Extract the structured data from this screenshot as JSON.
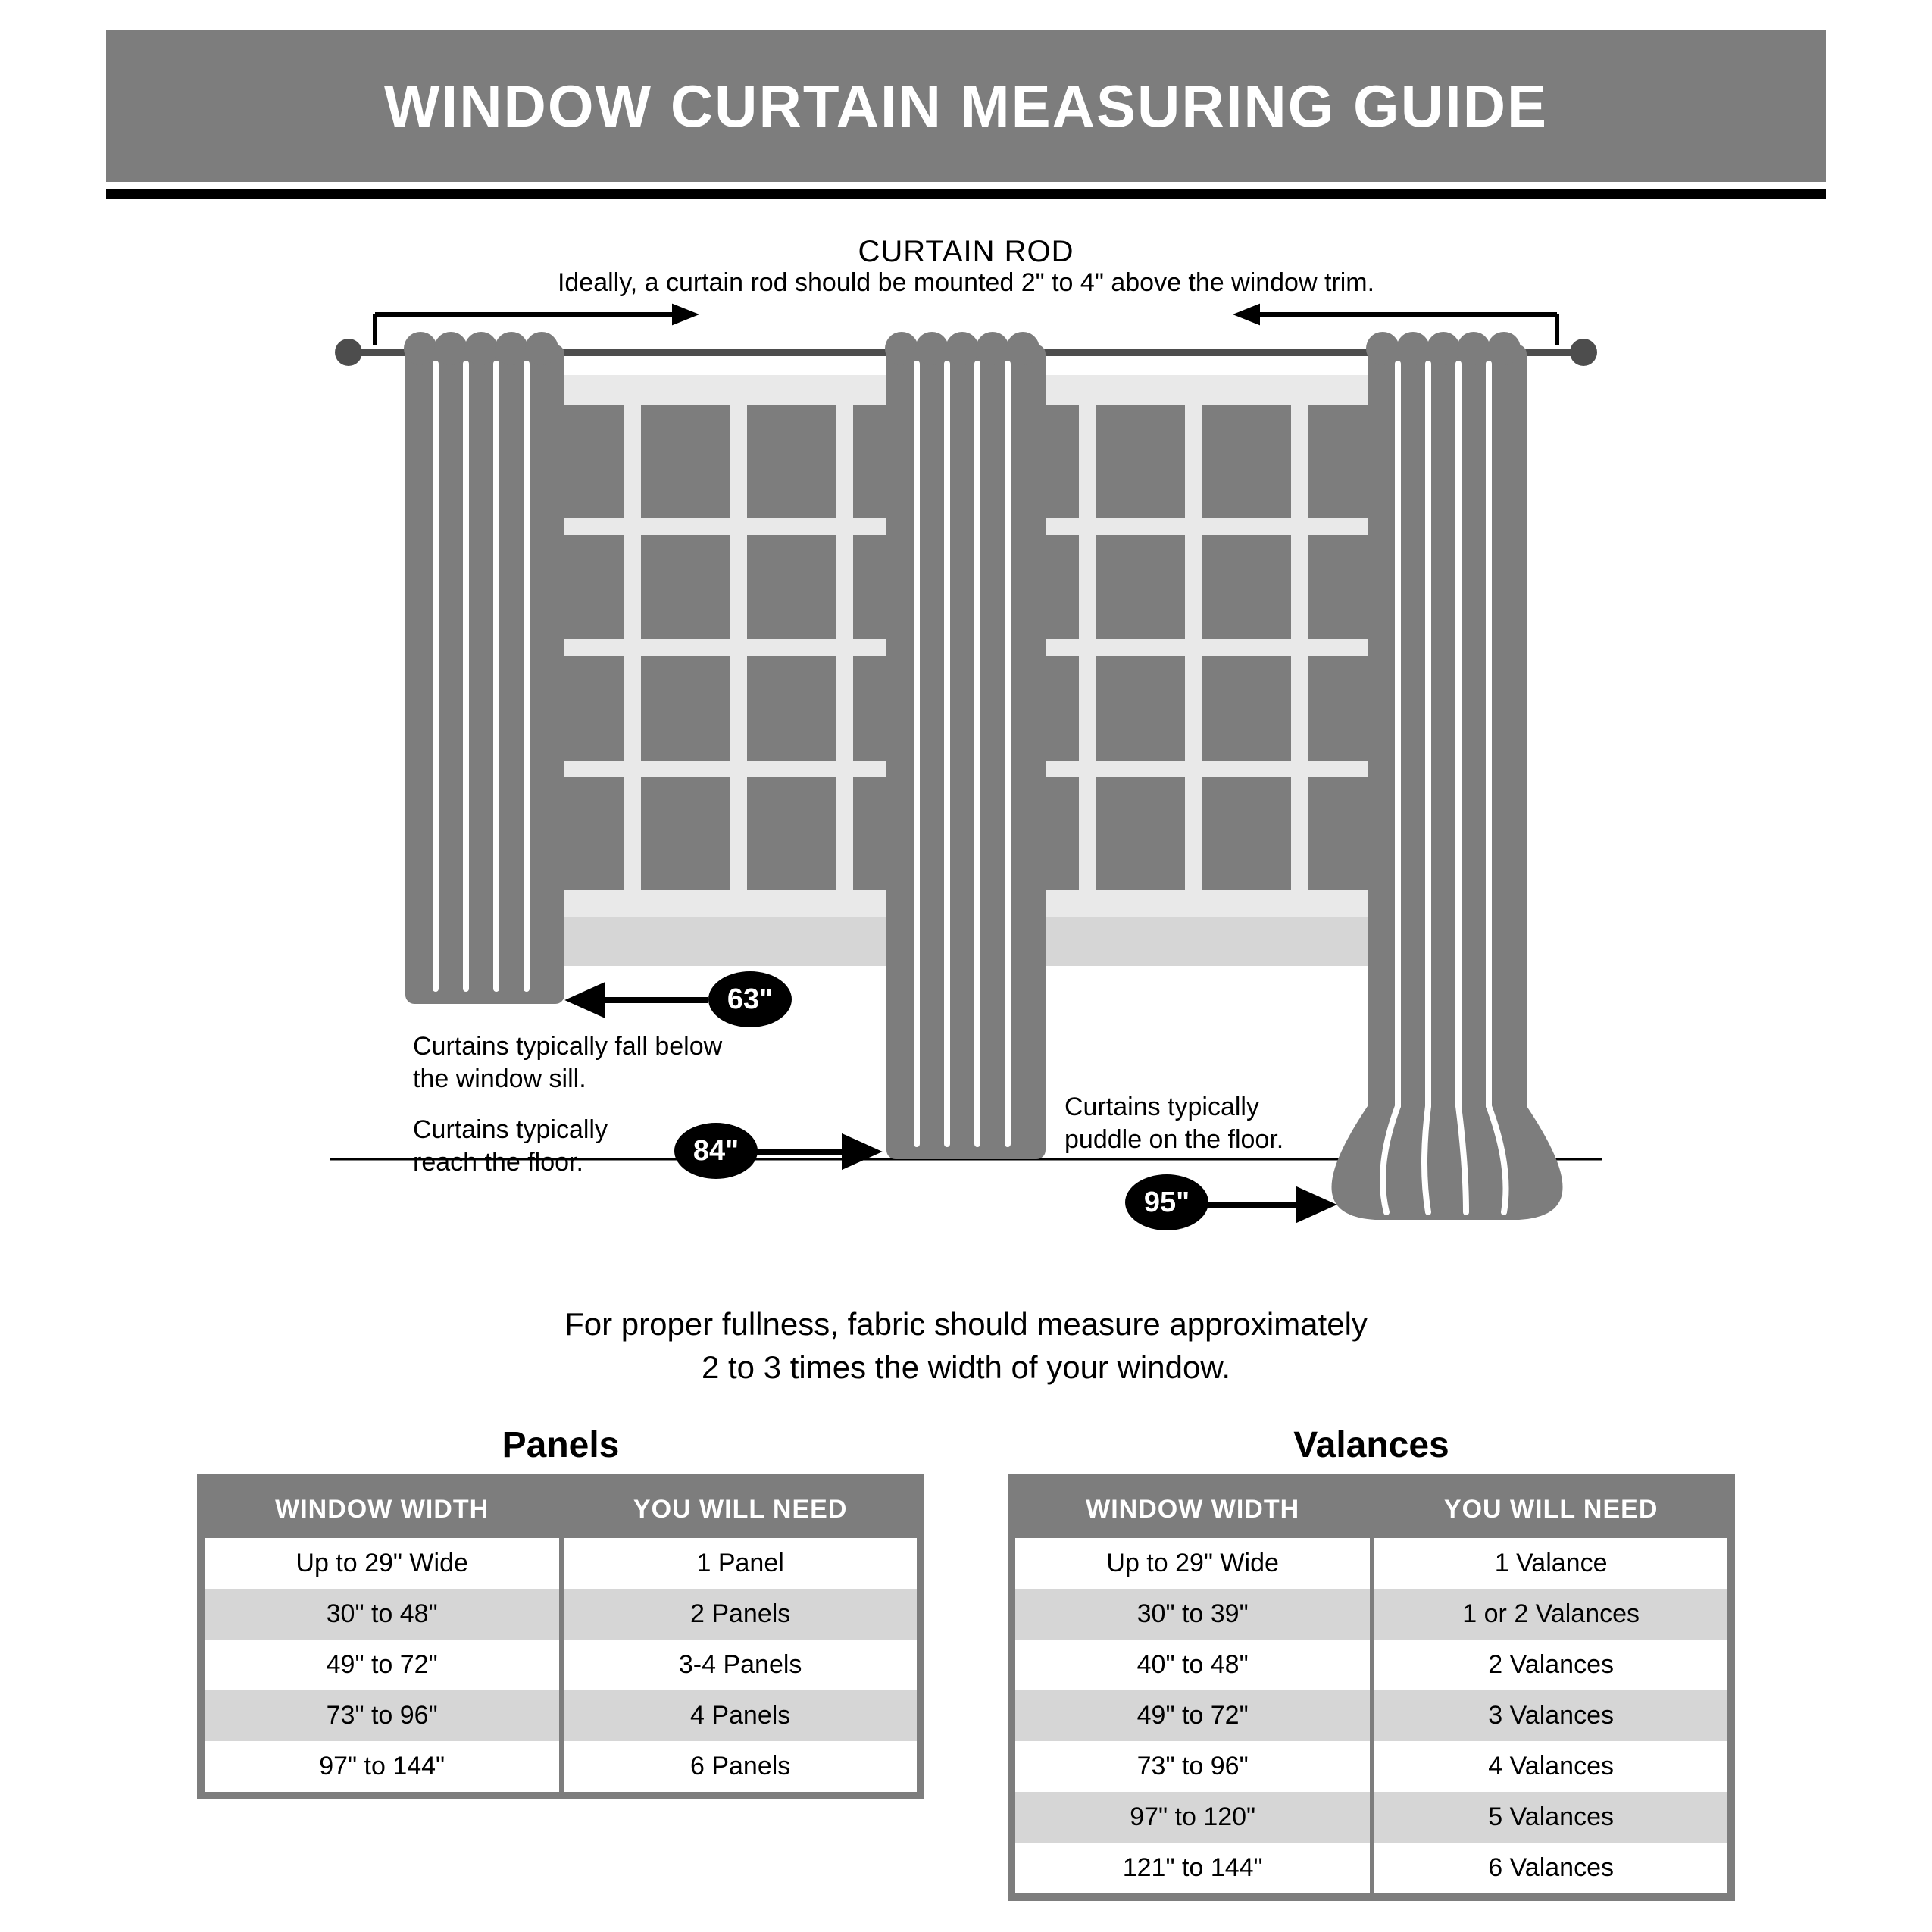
{
  "colors": {
    "header_band": "#7d7d7d",
    "header_underline": "#000000",
    "page_bg": "#ffffff",
    "curtain_fill": "#7d7d7d",
    "curtain_highlight": "#ffffff",
    "window_frame_light": "#e9e9e9",
    "window_muntin": "#9a9a9a",
    "window_pane": "#7d7d7d",
    "rod_line": "#4d4d4d",
    "floor_line": "#000000",
    "badge_bg": "#000000",
    "badge_text": "#ffffff",
    "table_border": "#7d7d7d",
    "table_header_bg": "#7d7d7d",
    "table_header_text": "#ffffff",
    "table_row_odd": "#ffffff",
    "table_row_even": "#d6d6d6"
  },
  "header": {
    "title": "WINDOW CURTAIN MEASURING GUIDE"
  },
  "rod": {
    "label": "CURTAIN ROD",
    "sublabel": "Ideally, a curtain rod should be mounted 2\" to 4\" above the window trim."
  },
  "lengths": {
    "short": {
      "value": "63\"",
      "note": "Curtains typically fall below the window sill."
    },
    "mid": {
      "value": "84\"",
      "note": "Curtains typically reach the floor."
    },
    "long": {
      "value": "95\"",
      "note": "Curtains typically puddle on the floor."
    }
  },
  "fullness_note": "For proper fullness, fabric should measure approximately\n2 to 3 times the width of your window.",
  "panels_table": {
    "title": "Panels",
    "columns": [
      "WINDOW WIDTH",
      "YOU WILL NEED"
    ],
    "rows": [
      [
        "Up to 29\" Wide",
        "1 Panel"
      ],
      [
        "30\" to 48\"",
        "2 Panels"
      ],
      [
        "49\" to 72\"",
        "3-4 Panels"
      ],
      [
        "73\" to 96\"",
        "4 Panels"
      ],
      [
        "97\" to 144\"",
        "6 Panels"
      ]
    ]
  },
  "valances_table": {
    "title": "Valances",
    "columns": [
      "WINDOW WIDTH",
      "YOU WILL NEED"
    ],
    "rows": [
      [
        "Up to 29\" Wide",
        "1 Valance"
      ],
      [
        "30\" to 39\"",
        "1 or 2 Valances"
      ],
      [
        "40\" to 48\"",
        "2 Valances"
      ],
      [
        "49\" to 72\"",
        "3 Valances"
      ],
      [
        "73\" to 96\"",
        "4 Valances"
      ],
      [
        "97\" to 120\"",
        "5 Valances"
      ],
      [
        "121\" to 144\"",
        "6 Valances"
      ]
    ]
  },
  "diagram_style": {
    "rod_arrow_stroke": 6,
    "floor_line_stroke": 3,
    "badge_width": 110,
    "badge_height": 72,
    "badge_fontsize": 38,
    "note_fontsize": 34
  }
}
